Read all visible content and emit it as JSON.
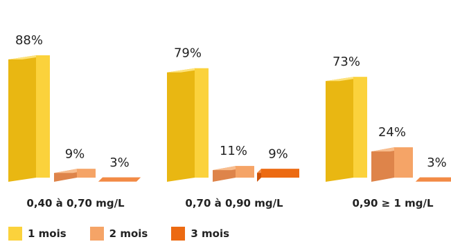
{
  "chart_data": {
    "type": "bar",
    "categories": [
      "0,40 à 0,70 mg/L",
      "0,70 à 0,90 mg/L",
      "0,90 ≥ 1 mg/L"
    ],
    "series": [
      {
        "name": "1 mois",
        "values": [
          88,
          79,
          73
        ],
        "labels": [
          "88%",
          "79%",
          "73%"
        ]
      },
      {
        "name": "2 mois",
        "values": [
          9,
          11,
          24
        ],
        "labels": [
          "9%",
          "11%",
          "24%"
        ]
      },
      {
        "name": "3 mois",
        "values": [
          3,
          9,
          3
        ],
        "labels": [
          "3%",
          "9%",
          "3%"
        ]
      }
    ],
    "colors": {
      "1 mois": {
        "front": "#FBD23C",
        "side": "#E9B712",
        "top": "#FDE27A"
      },
      "2 mois": {
        "front": "#F5A467",
        "side": "#DE844A",
        "top": "#F8BD8E"
      },
      "3 mois": {
        "front": "#EC6A12",
        "side": "#CC530A",
        "top": "#F28A45"
      }
    },
    "ylim": [
      0,
      100
    ],
    "legend_position": "bottom-left",
    "grid": false
  }
}
